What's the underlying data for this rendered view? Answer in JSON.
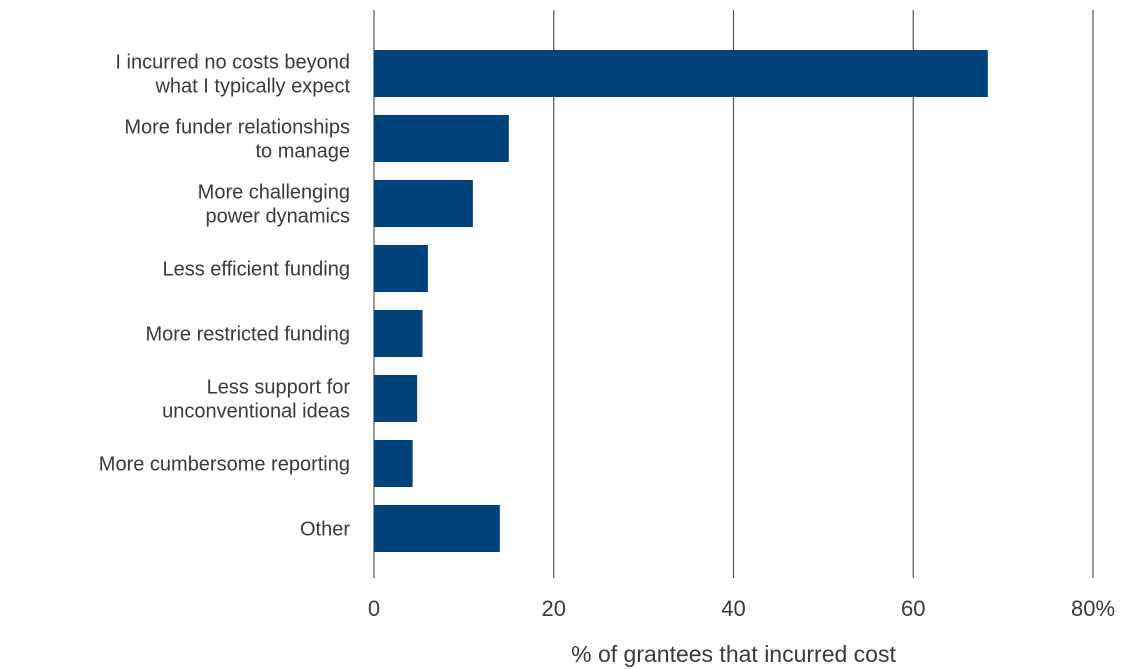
{
  "chart_data": {
    "type": "bar",
    "orientation": "horizontal",
    "categories": [
      [
        "I incurred no costs beyond",
        "what I typically expect"
      ],
      [
        "More funder relationships",
        "to manage"
      ],
      [
        "More challenging",
        "power dynamics"
      ],
      [
        "Less efficient funding"
      ],
      [
        "More restricted funding"
      ],
      [
        "Less support for",
        "unconventional ideas"
      ],
      [
        "More cumbersome reporting"
      ],
      [
        "Other"
      ]
    ],
    "values": [
      68.3,
      15.0,
      11.0,
      6.0,
      5.4,
      4.8,
      4.3,
      14.0
    ],
    "xlim": [
      0,
      80
    ],
    "ticks": [
      0,
      20,
      40,
      60,
      80
    ],
    "tick_labels": [
      "0",
      "20",
      "40",
      "60",
      "80%"
    ],
    "xlabel": "% of grantees that incurred cost",
    "ylabel": "",
    "title": "",
    "grid": "vertical",
    "legend": "none",
    "colors": {
      "bar": "#00427a"
    }
  }
}
